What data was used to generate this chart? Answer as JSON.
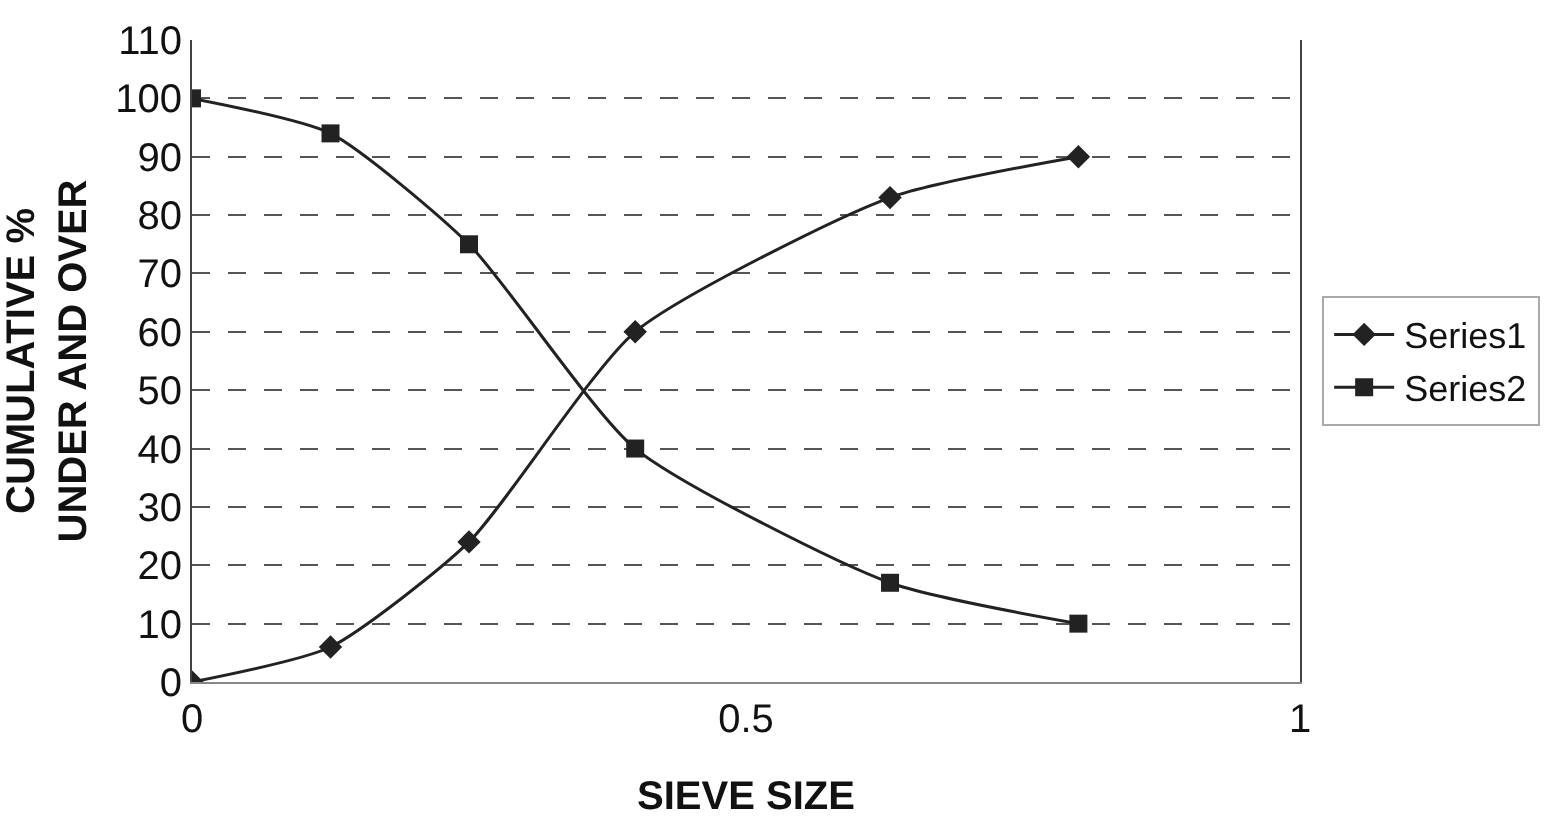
{
  "chart_data": {
    "type": "line",
    "xlabel": "SIEVE SIZE",
    "ylabel": "CUMULATIVE %\nUNDER AND OVER",
    "x": [
      0,
      0.125,
      0.25,
      0.4,
      0.63,
      0.8
    ],
    "series": [
      {
        "name": "Series1",
        "color": "#222222",
        "marker": "diamond",
        "values": [
          0,
          6,
          24,
          60,
          83,
          90
        ]
      },
      {
        "name": "Series2",
        "color": "#222222",
        "marker": "square",
        "values": [
          100,
          94,
          75,
          40,
          17,
          10
        ]
      }
    ],
    "xlim": [
      0,
      1
    ],
    "xticks": [
      0,
      0.5,
      1
    ],
    "ylim": [
      0,
      110
    ],
    "yticks": [
      0,
      10,
      20,
      30,
      40,
      50,
      60,
      70,
      80,
      90,
      100,
      110
    ],
    "grid": "y",
    "legend": "right",
    "line_style": "solid"
  }
}
